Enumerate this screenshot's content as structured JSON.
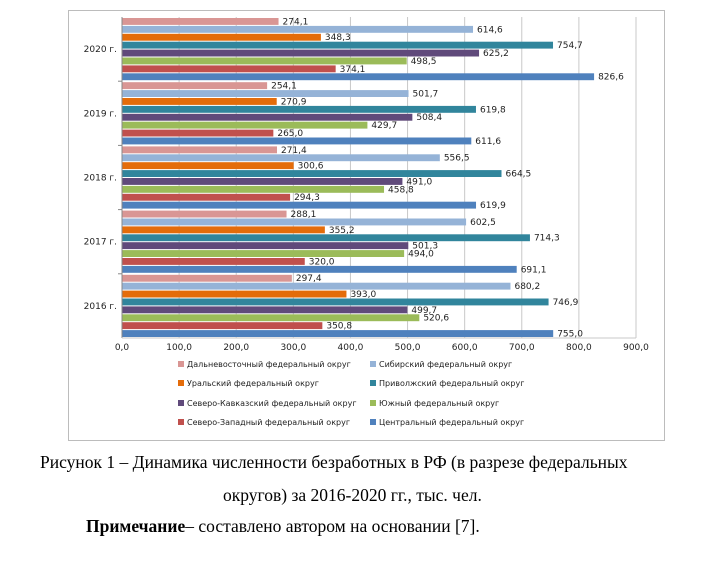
{
  "chart_data": {
    "type": "bar",
    "orientation": "horizontal",
    "categories": [
      "2020 г.",
      "2019 г.",
      "2018 г.",
      "2017 г.",
      "2016 г."
    ],
    "xlim": [
      0,
      900
    ],
    "xticks": [
      "0,0",
      "100,0",
      "200,0",
      "300,0",
      "400,0",
      "500,0",
      "600,0",
      "700,0",
      "800,0",
      "900,0"
    ],
    "grid": true,
    "legend_position": "bottom",
    "series": [
      {
        "name": "Дальневосточный федеральный округ",
        "color": "#d99694",
        "values": [
          274.1,
          254.1,
          271.4,
          288.1,
          297.4
        ],
        "labels": [
          "274,1",
          "254,1",
          "271,4",
          "288,1",
          "297,4"
        ]
      },
      {
        "name": "Сибирский федеральный округ",
        "color": "#95b3d7",
        "values": [
          614.6,
          501.7,
          556.5,
          602.5,
          680.2
        ],
        "labels": [
          "614,6",
          "501,7",
          "556,5",
          "602,5",
          "680,2"
        ]
      },
      {
        "name": "Уральский федеральный округ",
        "color": "#e46c0a",
        "values": [
          348.3,
          270.9,
          300.6,
          355.2,
          393.0
        ],
        "labels": [
          "348,3",
          "270,9",
          "300,6",
          "355,2",
          "393,0"
        ]
      },
      {
        "name": "Приволжский федеральный округ",
        "color": "#31859c",
        "values": [
          754.7,
          619.8,
          664.5,
          714.3,
          746.9
        ],
        "labels": [
          "754,7",
          "619,8",
          "664,5",
          "714,3",
          "746,9"
        ]
      },
      {
        "name": "Северо-Кавказский федеральный округ",
        "color": "#604a7b",
        "values": [
          625.2,
          508.4,
          491.0,
          501.3,
          499.7
        ],
        "labels": [
          "625,2",
          "508,4",
          "491,0",
          "501,3",
          "499,7"
        ]
      },
      {
        "name": "Южный федеральный округ",
        "color": "#9bbb59",
        "values": [
          498.5,
          429.7,
          458.8,
          494.0,
          520.6
        ],
        "labels": [
          "498,5",
          "429,7",
          "458,8",
          "494,0",
          "520,6"
        ]
      },
      {
        "name": "Северо-Западный федеральный округ",
        "color": "#c0504d",
        "values": [
          374.1,
          265.0,
          294.3,
          320.0,
          350.8
        ],
        "labels": [
          "374,1",
          "265,0",
          "294,3",
          "320,0",
          "350,8"
        ]
      },
      {
        "name": "Центральный федеральный округ",
        "color": "#4f81bd",
        "values": [
          826.6,
          611.6,
          619.9,
          691.1,
          755.0
        ],
        "labels": [
          "826,6",
          "611,6",
          "619,9",
          "691,1",
          "755,0"
        ]
      }
    ]
  },
  "caption": {
    "line1": "Рисунок 1 – Динамика численности безработных в РФ (в разрезе федеральных",
    "line2": "округов) за 2016-2020 гг., тыс. чел.",
    "note_bold": "Примечание",
    "note_rest": "– составлено автором на основании [7]."
  }
}
